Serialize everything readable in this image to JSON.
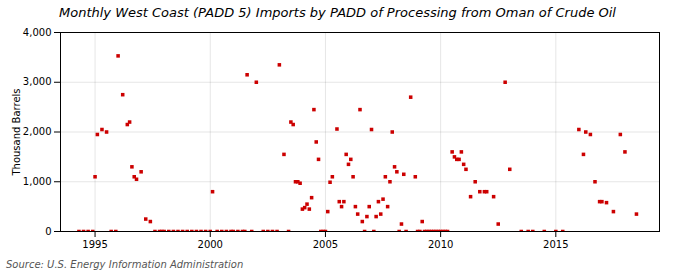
{
  "chart_data": {
    "type": "scatter",
    "title": "Monthly West Coast (PADD 5) Imports by PADD of Processing from Oman of Crude Oil",
    "ylabel": "Thousand Barrels",
    "source": "Source: U.S. Energy Information Administration",
    "color": "#cc0000",
    "marker": "square",
    "grid": true,
    "xlim": [
      1993.5,
      2019.5
    ],
    "xticks": [
      1995,
      2000,
      2005,
      2010,
      2015
    ],
    "ylim": [
      0,
      4000
    ],
    "yticks": [
      0,
      {
        "value": 1000,
        "label": "1,000"
      },
      {
        "value": 2000,
        "label": "2,000"
      },
      {
        "value": 3000,
        "label": "3,000"
      },
      {
        "value": 4000,
        "label": "4,000"
      }
    ],
    "x": [
      1994.3,
      1994.5,
      1994.7,
      1994.9,
      1995.0,
      1995.1,
      1995.3,
      1995.5,
      1995.7,
      1995.9,
      1996.0,
      1996.2,
      1996.4,
      1996.5,
      1996.6,
      1996.7,
      1996.8,
      1997.0,
      1997.2,
      1997.4,
      1997.6,
      1997.8,
      1997.9,
      1998.0,
      1998.2,
      1998.4,
      1998.6,
      1998.8,
      1999.0,
      1999.2,
      1999.4,
      1999.6,
      1999.8,
      2000.0,
      2000.1,
      2000.3,
      2000.5,
      2000.7,
      2000.9,
      2001.0,
      2001.2,
      2001.4,
      2001.5,
      2001.6,
      2001.8,
      2002.0,
      2002.3,
      2002.5,
      2002.7,
      2002.9,
      2003.0,
      2003.2,
      2003.4,
      2003.5,
      2003.6,
      2003.7,
      2003.8,
      2003.9,
      2004.0,
      2004.1,
      2004.2,
      2004.3,
      2004.4,
      2004.5,
      2004.6,
      2004.7,
      2004.8,
      2004.9,
      2005.0,
      2005.1,
      2005.2,
      2005.3,
      2005.5,
      2005.6,
      2005.7,
      2005.8,
      2005.9,
      2006.0,
      2006.1,
      2006.2,
      2006.3,
      2006.4,
      2006.5,
      2006.6,
      2006.7,
      2006.8,
      2006.9,
      2007.0,
      2007.1,
      2007.2,
      2007.3,
      2007.4,
      2007.5,
      2007.6,
      2007.7,
      2007.8,
      2007.9,
      2008.0,
      2008.1,
      2008.2,
      2008.3,
      2008.4,
      2008.5,
      2008.7,
      2008.9,
      2009.0,
      2009.1,
      2009.2,
      2009.3,
      2009.4,
      2009.5,
      2009.6,
      2009.7,
      2009.8,
      2009.9,
      2010.0,
      2010.1,
      2010.2,
      2010.3,
      2010.5,
      2010.6,
      2010.7,
      2010.8,
      2010.9,
      2011.0,
      2011.1,
      2011.3,
      2011.5,
      2011.7,
      2011.9,
      2012.0,
      2012.3,
      2012.5,
      2012.8,
      2013.0,
      2013.5,
      2013.8,
      2014.0,
      2014.5,
      2015.0,
      2015.3,
      2016.0,
      2016.2,
      2016.3,
      2016.5,
      2016.7,
      2016.9,
      2017.0,
      2017.2,
      2017.5,
      2017.8,
      2018.0,
      2018.5
    ],
    "values": [
      0,
      0,
      0,
      0,
      1100,
      1950,
      2050,
      2000,
      0,
      0,
      3530,
      2750,
      2150,
      2200,
      1300,
      1100,
      1050,
      1200,
      250,
      200,
      0,
      0,
      0,
      0,
      0,
      0,
      0,
      0,
      0,
      0,
      0,
      0,
      0,
      0,
      800,
      0,
      0,
      0,
      0,
      0,
      0,
      0,
      0,
      3150,
      0,
      3000,
      0,
      0,
      0,
      0,
      3350,
      1550,
      0,
      2200,
      2150,
      1000,
      1000,
      970,
      450,
      480,
      550,
      450,
      680,
      2450,
      1800,
      1450,
      0,
      0,
      0,
      400,
      990,
      1100,
      2060,
      600,
      500,
      600,
      1550,
      1350,
      1450,
      1100,
      500,
      350,
      2450,
      200,
      0,
      300,
      500,
      2050,
      0,
      300,
      600,
      350,
      650,
      1100,
      500,
      1000,
      2000,
      1300,
      1200,
      0,
      150,
      1150,
      0,
      2700,
      1100,
      0,
      0,
      200,
      0,
      0,
      0,
      0,
      0,
      0,
      0,
      0,
      0,
      0,
      0,
      1600,
      1500,
      1450,
      1450,
      1600,
      1350,
      1250,
      700,
      1000,
      800,
      800,
      800,
      700,
      150,
      3000,
      1250,
      0,
      0,
      0,
      0,
      0,
      0,
      2050,
      1550,
      2000,
      1950,
      1000,
      600,
      600,
      580,
      400,
      1950,
      1600,
      350
    ]
  }
}
